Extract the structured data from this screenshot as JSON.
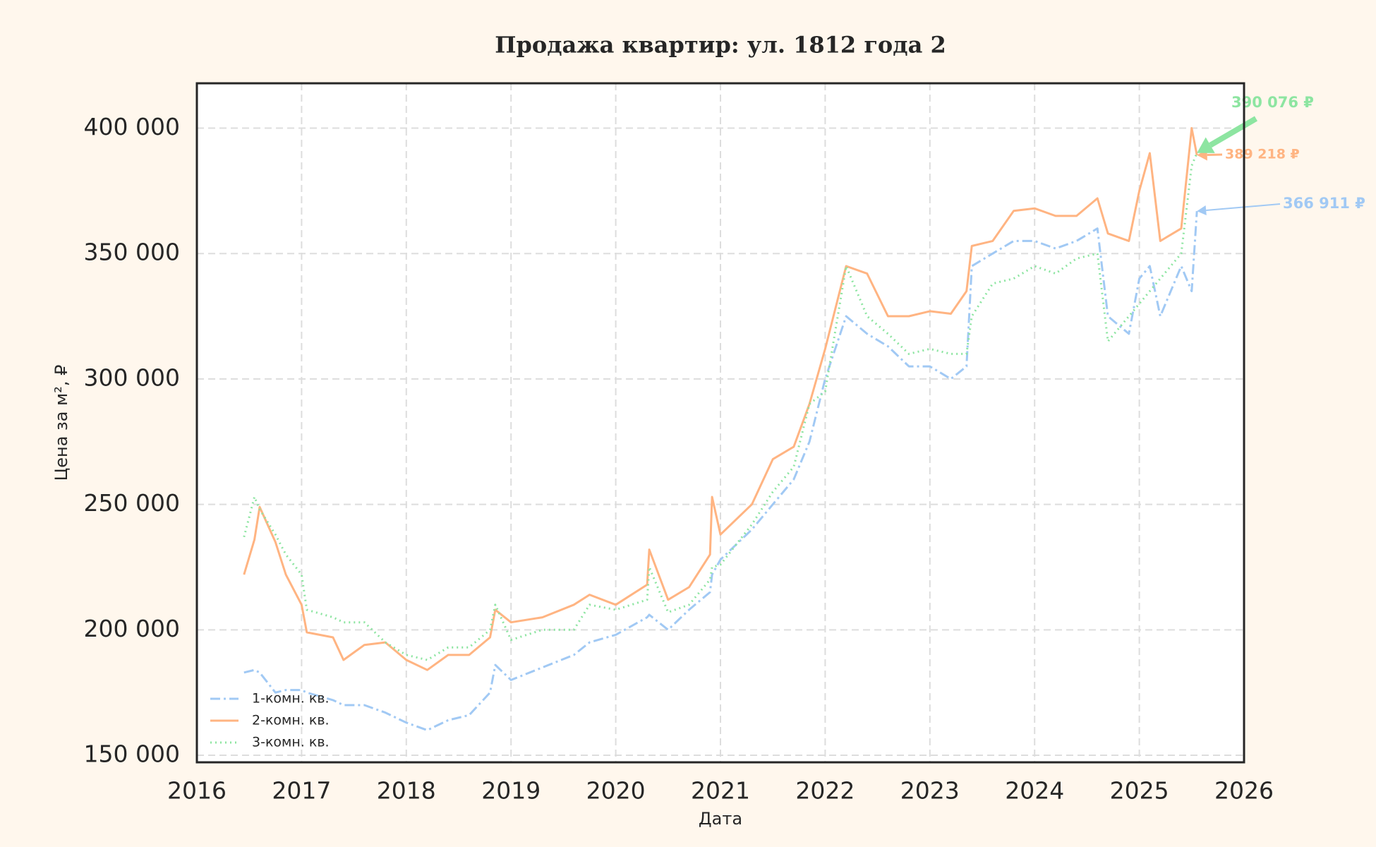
{
  "chart_data": {
    "type": "line",
    "title": "Продажа квартир: ул. 1812 года 2",
    "x_label": "Дата",
    "y_label": "Цена за м², ₽",
    "x": [
      2016.45,
      2016.55,
      2016.6,
      2016.75,
      2016.85,
      2017.0,
      2017.05,
      2017.3,
      2017.4,
      2017.6,
      2017.8,
      2018.0,
      2018.2,
      2018.4,
      2018.6,
      2018.8,
      2018.85,
      2019.0,
      2019.3,
      2019.6,
      2019.75,
      2020.0,
      2020.3,
      2020.32,
      2020.5,
      2020.7,
      2020.9,
      2020.92,
      2021.0,
      2021.3,
      2021.5,
      2021.7,
      2021.85,
      2022.0,
      2022.2,
      2022.4,
      2022.6,
      2022.8,
      2023.0,
      2023.2,
      2023.35,
      2023.4,
      2023.6,
      2023.8,
      2024.0,
      2024.2,
      2024.4,
      2024.6,
      2024.7,
      2024.9,
      2025.0,
      2025.1,
      2025.2,
      2025.4,
      2025.5,
      2025.55
    ],
    "series": [
      {
        "name": "1-комн. кв.",
        "color": "#a1c9f4",
        "style": "dashdot",
        "values": [
          183000,
          184000,
          183000,
          175000,
          176000,
          176000,
          175000,
          172000,
          170000,
          170000,
          167000,
          163000,
          160000,
          164000,
          166000,
          175000,
          186000,
          180000,
          185000,
          190000,
          195000,
          198000,
          205000,
          206000,
          200000,
          208000,
          215000,
          222000,
          228000,
          240000,
          250000,
          260000,
          275000,
          300000,
          325000,
          318000,
          313000,
          305000,
          305000,
          300000,
          305000,
          345000,
          350000,
          355000,
          355000,
          352000,
          355000,
          360000,
          325000,
          318000,
          340000,
          345000,
          325000,
          345000,
          335000,
          366911
        ]
      },
      {
        "name": "2-комн. кв.",
        "color": "#ffb482",
        "style": "solid",
        "values": [
          222000,
          236000,
          249000,
          235000,
          222000,
          210000,
          199000,
          197000,
          188000,
          194000,
          195000,
          188000,
          184000,
          190000,
          190000,
          197000,
          208000,
          203000,
          205000,
          210000,
          214000,
          210000,
          218000,
          232000,
          212000,
          217000,
          230000,
          253000,
          238000,
          250000,
          268000,
          273000,
          290000,
          312000,
          345000,
          342000,
          325000,
          325000,
          327000,
          326000,
          335000,
          353000,
          355000,
          367000,
          368000,
          365000,
          365000,
          372000,
          358000,
          355000,
          375000,
          390000,
          355000,
          360000,
          400000,
          389218
        ]
      },
      {
        "name": "3-комн. кв.",
        "color": "#8de5a1",
        "style": "dotted",
        "values": [
          237000,
          253000,
          248000,
          238000,
          230000,
          222000,
          208000,
          205000,
          203000,
          203000,
          195000,
          190000,
          188000,
          193000,
          193000,
          200000,
          210000,
          196000,
          200000,
          200000,
          210000,
          208000,
          212000,
          225000,
          207000,
          210000,
          220000,
          225000,
          226000,
          242000,
          255000,
          265000,
          290000,
          295000,
          345000,
          325000,
          318000,
          310000,
          312000,
          310000,
          310000,
          325000,
          338000,
          340000,
          345000,
          342000,
          348000,
          350000,
          315000,
          325000,
          330000,
          335000,
          340000,
          350000,
          385000,
          390076
        ]
      }
    ],
    "annotations": [
      {
        "text": "366 911 ₽",
        "x": 2025.55,
        "y": 366911
      },
      {
        "text": "389 218 ₽",
        "x": 2025.55,
        "y": 389218
      },
      {
        "text": "390 076 ₽",
        "x": 2025.55,
        "y": 390076
      }
    ],
    "xlim": [
      2016,
      2026
    ],
    "xticks": [
      2016,
      2017,
      2018,
      2019,
      2020,
      2021,
      2022,
      2023,
      2024,
      2025,
      2026
    ],
    "ylim": [
      147200,
      417860
    ],
    "yticks": [
      {
        "value": 150000,
        "label": "150 000"
      },
      {
        "value": 200000,
        "label": "200 000"
      },
      {
        "value": 250000,
        "label": "250 000"
      },
      {
        "value": 300000,
        "label": "300 000"
      },
      {
        "value": 350000,
        "label": "350 000"
      },
      {
        "value": 400000,
        "label": "400 000"
      }
    ],
    "grid": true,
    "legend": "lower left"
  }
}
